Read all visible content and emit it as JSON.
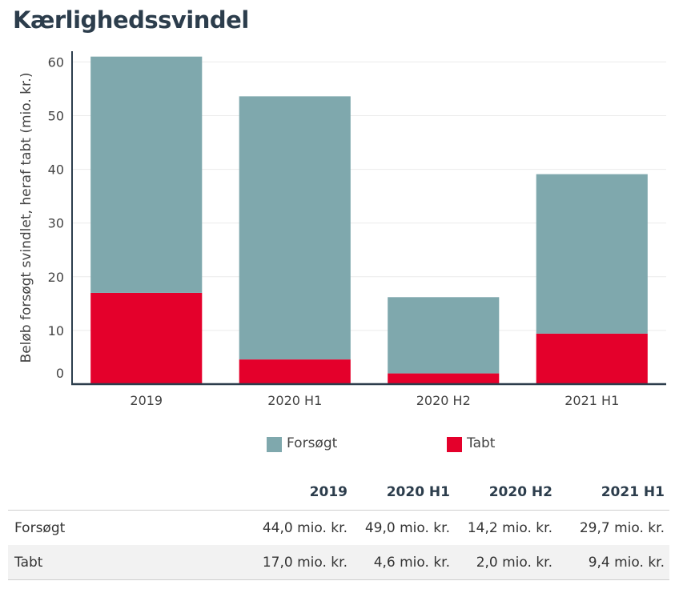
{
  "title": "Kærlighedssvindel",
  "chart_data": {
    "type": "bar",
    "stacked": true,
    "categories": [
      "2019",
      "2020 H1",
      "2020 H2",
      "2021 H1"
    ],
    "series": [
      {
        "name": "Tabt",
        "values": [
          17.0,
          4.6,
          2.0,
          9.4
        ],
        "color": "#e4002b"
      },
      {
        "name": "Forsøgt",
        "values": [
          44.0,
          49.0,
          14.2,
          29.7
        ],
        "color": "#7fa8ad"
      }
    ],
    "ylabel": "Beløb forsøgt svindlet, heraf tabt (mio. kr.)",
    "xlabel": "",
    "yticks": [
      0,
      10,
      20,
      30,
      40,
      50,
      60
    ],
    "ylim": [
      0,
      62
    ],
    "grid": true,
    "legend_position": "bottom"
  },
  "legend": [
    {
      "label": "Forsøgt",
      "color": "#7fa8ad"
    },
    {
      "label": "Tabt",
      "color": "#e4002b"
    }
  ],
  "table": {
    "headers": [
      "",
      "2019",
      "2020 H1",
      "2020 H2",
      "2021 H1"
    ],
    "rows": [
      {
        "label": "Forsøgt",
        "values": [
          "44,0 mio. kr.",
          "49,0 mio. kr.",
          "14,2 mio. kr.",
          "29,7 mio. kr."
        ]
      },
      {
        "label": "Tabt",
        "values": [
          "17,0 mio. kr.",
          "4,6 mio. kr.",
          "2,0 mio. kr.",
          "9,4 mio. kr."
        ]
      }
    ]
  }
}
